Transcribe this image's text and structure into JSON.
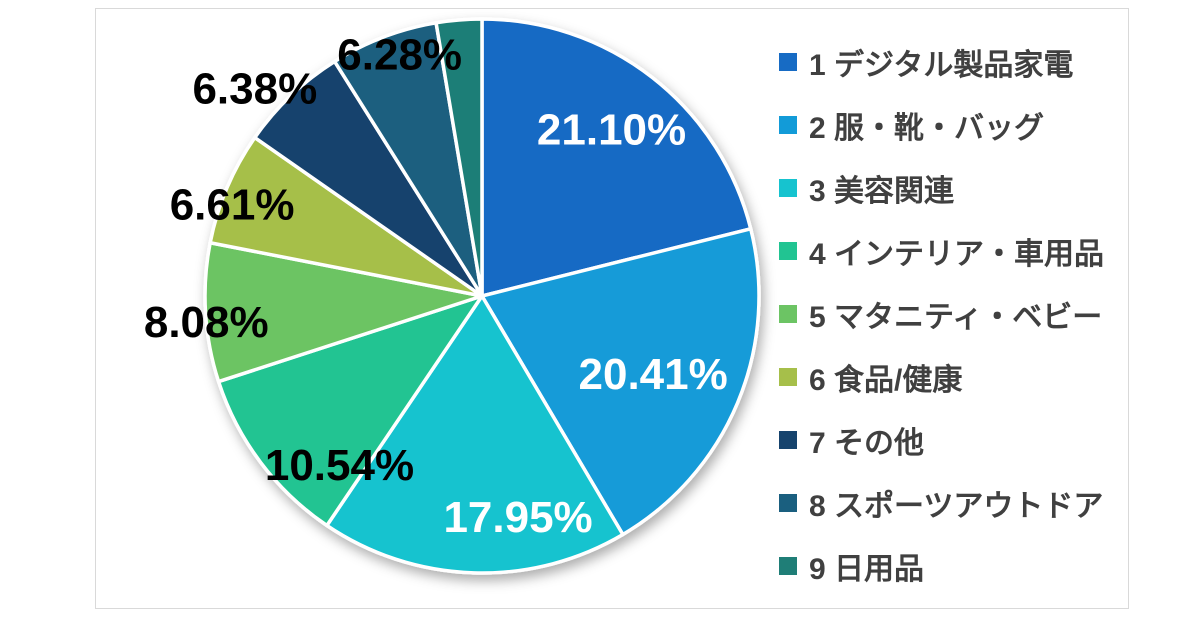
{
  "page": {
    "background": "#ffffff"
  },
  "card": {
    "background": "#ffffff",
    "border_color": "#d9d9d9"
  },
  "chart_data": {
    "type": "pie",
    "title": "",
    "legend_position": "right",
    "start_angle_deg": 0,
    "direction": "clockwise",
    "donut": false,
    "slice_border_color": "#ffffff",
    "inside_label_color": "#ffffff",
    "outside_label_color": "#000000",
    "legend_text_color": "#404040",
    "slices": [
      {
        "rank": "1",
        "label": "デジタル製品家電",
        "pct": 21.1,
        "display": "21.10%",
        "color": "#176bc4",
        "label_style": "inside"
      },
      {
        "rank": "2",
        "label": "服・靴・バッグ",
        "pct": 20.41,
        "display": "20.41%",
        "color": "#129bd8",
        "label_style": "inside"
      },
      {
        "rank": "3",
        "label": "美容関連",
        "pct": 17.95,
        "display": "17.95%",
        "color": "#16c3cf",
        "label_style": "inside"
      },
      {
        "rank": "4",
        "label": "インテリア・車用品",
        "pct": 10.54,
        "display": "10.54%",
        "color": "#21c492",
        "label_style": "outside"
      },
      {
        "rank": "5",
        "label": "マタニティ・ベビー",
        "pct": 8.08,
        "display": "8.08%",
        "color": "#6cc464",
        "label_style": "outside"
      },
      {
        "rank": "6",
        "label": "食品/健康",
        "pct": 6.61,
        "display": "6.61%",
        "color": "#a6bf4a",
        "label_style": "outside"
      },
      {
        "rank": "7",
        "label": "その他",
        "pct": 6.38,
        "display": "6.38%",
        "color": "#16436d",
        "label_style": "outside"
      },
      {
        "rank": "8",
        "label": "スポーツアウトドア",
        "pct": 6.28,
        "display": "6.28%",
        "color": "#1a5f7f",
        "label_style": "outside"
      },
      {
        "rank": "9",
        "label": "日用品",
        "pct": 2.65,
        "display": "",
        "color": "#1f7e77",
        "label_style": "none"
      }
    ]
  }
}
